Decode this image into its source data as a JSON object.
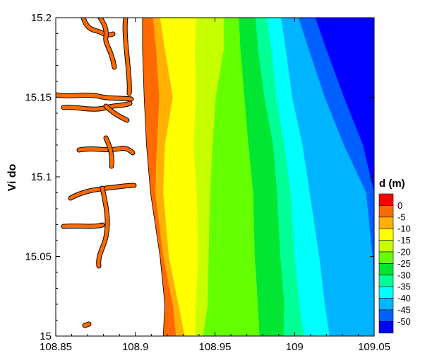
{
  "chart_data": {
    "type": "heatmap",
    "title": "",
    "xlabel": "",
    "ylabel": "Vi do",
    "xlim": [
      108.85,
      109.05
    ],
    "ylim": [
      15.0,
      15.2
    ],
    "x_ticks": [
      "108.85",
      "108.9",
      "108.95",
      "109",
      "109.05"
    ],
    "y_ticks": [
      "15",
      "15.05",
      "15.1",
      "15.15",
      "15.2"
    ],
    "legend": {
      "title": "d (m)",
      "placement": "right",
      "labels": [
        "0",
        "-5",
        "-10",
        "-15",
        "-20",
        "-25",
        "-30",
        "-35",
        "-40",
        "-45",
        "-50"
      ],
      "levels": [
        0,
        -5,
        -10,
        -15,
        -20,
        -25,
        -30,
        -35,
        -40,
        -45,
        -50
      ],
      "colors": [
        "#ff0000",
        "#ff6a00",
        "#ffb000",
        "#ffff00",
        "#c8ff00",
        "#64ff00",
        "#00e632",
        "#00ff96",
        "#00ffff",
        "#00b4ff",
        "#0060ff",
        "#0000ff"
      ]
    },
    "contours": [
      {
        "level": 0,
        "color": "#ff6a00",
        "x": [
          108.9175,
          108.9185,
          108.9155,
          108.9095,
          108.907,
          108.9055,
          108.9045,
          108.9045
        ],
        "y": [
          15.0,
          15.02,
          15.05,
          15.09,
          15.12,
          15.15,
          15.18,
          15.2
        ]
      },
      {
        "level": -5,
        "color": "#ffb000",
        "x": [
          108.9255,
          108.9235,
          108.9175,
          108.9125,
          108.9135,
          108.915,
          108.913,
          108.911
        ],
        "y": [
          15.0,
          15.02,
          15.05,
          15.09,
          15.12,
          15.15,
          15.18,
          15.2
        ]
      },
      {
        "level": -10,
        "color": "#ffff00",
        "x": [
          108.931,
          108.927,
          108.921,
          108.9175,
          108.9185,
          108.9235,
          108.9185,
          108.9155
        ],
        "y": [
          15.0,
          15.02,
          15.05,
          15.09,
          15.12,
          15.15,
          15.18,
          15.2
        ]
      },
      {
        "level": -15,
        "color": "#c8ff00",
        "x": [
          108.9375,
          108.938,
          108.9395,
          108.9385,
          108.9365,
          108.938,
          108.9375,
          108.938
        ],
        "y": [
          15.0,
          15.02,
          15.05,
          15.09,
          15.12,
          15.15,
          15.18,
          15.2
        ]
      },
      {
        "level": -20,
        "color": "#64ff00",
        "x": [
          108.9425,
          108.9455,
          108.946,
          108.947,
          108.9485,
          108.9505,
          108.9555,
          108.9555
        ],
        "y": [
          15.0,
          15.02,
          15.05,
          15.09,
          15.12,
          15.15,
          15.18,
          15.2
        ]
      },
      {
        "level": -25,
        "color": "#00e632",
        "x": [
          108.978,
          108.977,
          108.975,
          108.974,
          108.971,
          108.9685,
          108.966,
          108.965
        ],
        "y": [
          15.0,
          15.02,
          15.05,
          15.09,
          15.12,
          15.15,
          15.18,
          15.2
        ]
      },
      {
        "level": -30,
        "color": "#00ff96",
        "x": [
          108.993,
          108.9935,
          108.991,
          108.989,
          108.9865,
          108.981,
          108.977,
          108.9755
        ],
        "y": [
          15.0,
          15.02,
          15.05,
          15.09,
          15.12,
          15.15,
          15.18,
          15.2
        ]
      },
      {
        "level": -35,
        "color": "#00ffff",
        "x": [
          109.006,
          109.003,
          109.0,
          108.9975,
          108.9935,
          108.9885,
          108.9855,
          108.9825
        ],
        "y": [
          15.0,
          15.02,
          15.05,
          15.09,
          15.12,
          15.15,
          15.18,
          15.2
        ]
      },
      {
        "level": -40,
        "color": "#00b4ff",
        "x": [
          109.022,
          109.019,
          109.0155,
          109.0095,
          109.005,
          108.9985,
          108.9945,
          108.9915
        ],
        "y": [
          15.0,
          15.02,
          15.05,
          15.09,
          15.12,
          15.15,
          15.18,
          15.2
        ]
      },
      {
        "level": -45,
        "color": "#0060ff",
        "x": [
          109.05,
          109.05,
          109.049,
          109.045,
          109.031,
          109.019,
          109.009,
          109.0025
        ],
        "y": [
          15.0,
          15.02,
          15.05,
          15.09,
          15.12,
          15.15,
          15.18,
          15.2
        ]
      }
    ]
  }
}
